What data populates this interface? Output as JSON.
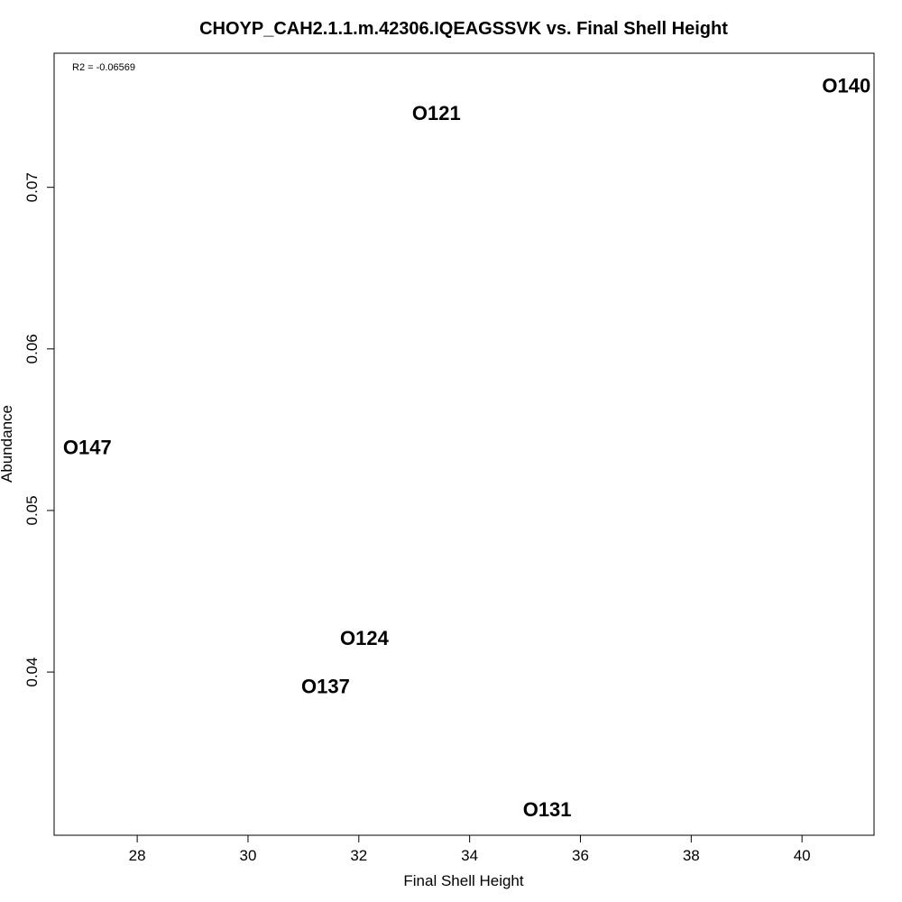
{
  "chart_data": {
    "type": "scatter",
    "title": "CHOYP_CAH2.1.1.m.42306.IQEAGSSVK vs. Final Shell Height",
    "xlabel": "Final Shell Height",
    "ylabel": "Abundance",
    "annotation": "R2 = -0.06569",
    "xlim": [
      26.5,
      41.3
    ],
    "ylim": [
      0.0299,
      0.0783
    ],
    "x_ticks": [
      28,
      30,
      32,
      34,
      36,
      38,
      40
    ],
    "y_ticks": [
      0.04,
      0.05,
      0.06,
      0.07
    ],
    "grid": false,
    "legend": "none",
    "points": [
      {
        "label": "O140",
        "x": 40.8,
        "y": 0.0763
      },
      {
        "label": "O121",
        "x": 33.4,
        "y": 0.0746
      },
      {
        "label": "O147",
        "x": 27.1,
        "y": 0.0539
      },
      {
        "label": "O124",
        "x": 32.1,
        "y": 0.0421
      },
      {
        "label": "O137",
        "x": 31.4,
        "y": 0.0391
      },
      {
        "label": "O131",
        "x": 35.4,
        "y": 0.0315
      }
    ]
  }
}
